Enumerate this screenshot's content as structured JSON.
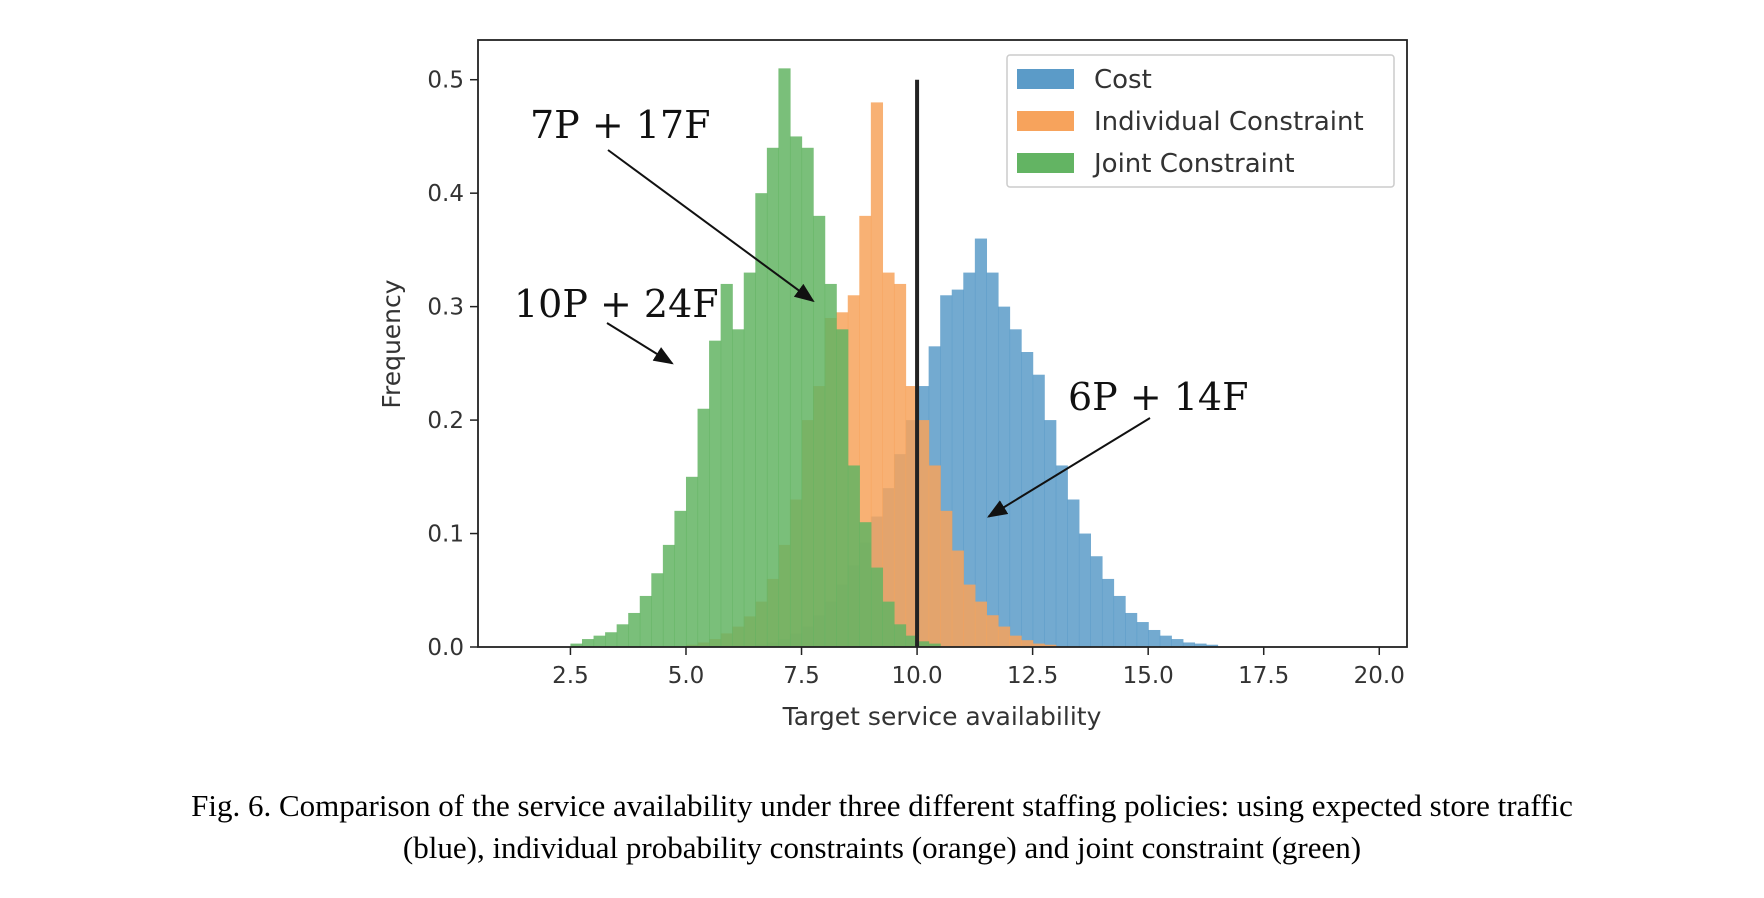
{
  "chart_data": {
    "type": "histogram",
    "xlabel": "Target service availability",
    "ylabel": "Frequency",
    "xlim": [
      0.5,
      20.6
    ],
    "ylim": [
      0,
      0.535
    ],
    "xticks": [
      "2.5",
      "5.0",
      "7.5",
      "10.0",
      "12.5",
      "15.0",
      "17.5",
      "20.0"
    ],
    "yticks": [
      "0.0",
      "0.1",
      "0.2",
      "0.3",
      "0.4",
      "0.5"
    ],
    "legend_position": "top-right",
    "bin_width": 0.25,
    "vertical_line_x": 10.0,
    "vertical_line_ymax": 0.5,
    "series": [
      {
        "name": "Cost",
        "color": "#5b9bc8",
        "bin_start": 6.5,
        "values": [
          0.002,
          0.004,
          0.007,
          0.012,
          0.018,
          0.028,
          0.04,
          0.055,
          0.072,
          0.092,
          0.115,
          0.14,
          0.17,
          0.2,
          0.23,
          0.265,
          0.31,
          0.315,
          0.33,
          0.36,
          0.33,
          0.3,
          0.28,
          0.26,
          0.24,
          0.2,
          0.16,
          0.13,
          0.1,
          0.08,
          0.06,
          0.045,
          0.03,
          0.022,
          0.015,
          0.01,
          0.007,
          0.004,
          0.003,
          0.002
        ]
      },
      {
        "name": "Individual Constraint",
        "color": "#f7a35c",
        "bin_start": 5.0,
        "values": [
          0.002,
          0.004,
          0.007,
          0.012,
          0.018,
          0.027,
          0.04,
          0.06,
          0.09,
          0.13,
          0.2,
          0.23,
          0.29,
          0.295,
          0.31,
          0.38,
          0.48,
          0.33,
          0.32,
          0.23,
          0.2,
          0.16,
          0.12,
          0.085,
          0.055,
          0.04,
          0.028,
          0.018,
          0.01,
          0.006,
          0.003,
          0.002
        ]
      },
      {
        "name": "Joint Constraint",
        "color": "#63b463",
        "bin_start": 2.5,
        "values": [
          0.003,
          0.007,
          0.01,
          0.013,
          0.02,
          0.03,
          0.045,
          0.065,
          0.09,
          0.12,
          0.15,
          0.21,
          0.27,
          0.32,
          0.28,
          0.33,
          0.4,
          0.44,
          0.51,
          0.45,
          0.44,
          0.38,
          0.32,
          0.28,
          0.16,
          0.11,
          0.07,
          0.04,
          0.02,
          0.01,
          0.005,
          0.003
        ]
      }
    ],
    "annotations": [
      {
        "text": "7P + 17F",
        "x": 5.5,
        "y": 0.46,
        "arrow_to": [
          7.75,
          0.305
        ]
      },
      {
        "text": "10P + 24F",
        "x": 4.4,
        "y": 0.3,
        "arrow_to": [
          4.7,
          0.25
        ]
      },
      {
        "text": "6P + 14F",
        "x": 13.1,
        "y": 0.22,
        "arrow_to": [
          11.55,
          0.115
        ]
      }
    ]
  },
  "caption_line1": "Fig. 6. Comparison of the service availability under three different staffing policies: using expected store traffic",
  "caption_line2": "(blue), individual probability constraints (orange) and joint constraint (green)"
}
